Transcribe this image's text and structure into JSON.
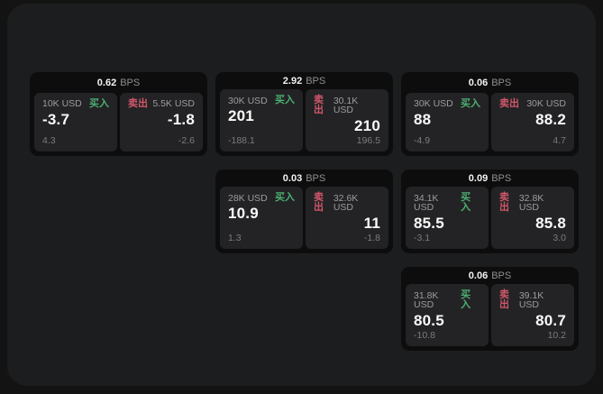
{
  "labels": {
    "bps_unit": "BPS",
    "buy": "买入",
    "sell": "卖出"
  },
  "colors": {
    "buy_color": "#4caf72",
    "sell_color": "#d0576a",
    "window_bg": "#1c1d1e",
    "card_bg": "#0d0d0e",
    "panel_bg": "#232325"
  },
  "cards": [
    {
      "bps": "0.62",
      "buy": {
        "amount": "10K USD",
        "price": "-3.7",
        "delta": "4.3"
      },
      "sell": {
        "amount": "5.5K USD",
        "price": "-1.8",
        "delta": "-2.6"
      }
    },
    {
      "bps": "2.92",
      "buy": {
        "amount": "30K USD",
        "price": "201",
        "delta": "-188.1"
      },
      "sell": {
        "amount": "30.1K USD",
        "price": "210",
        "delta": "196.5"
      }
    },
    {
      "bps": "0.06",
      "buy": {
        "amount": "30K USD",
        "price": "88",
        "delta": "-4.9"
      },
      "sell": {
        "amount": "30K USD",
        "price": "88.2",
        "delta": "4.7"
      }
    },
    {
      "bps": "0.03",
      "buy": {
        "amount": "28K USD",
        "price": "10.9",
        "delta": "1.3"
      },
      "sell": {
        "amount": "32.6K USD",
        "price": "11",
        "delta": "-1.8"
      }
    },
    {
      "bps": "0.09",
      "buy": {
        "amount": "34.1K USD",
        "price": "85.5",
        "delta": "-3.1"
      },
      "sell": {
        "amount": "32.8K USD",
        "price": "85.8",
        "delta": "3.0"
      }
    },
    {
      "bps": "0.06",
      "buy": {
        "amount": "31.8K USD",
        "price": "80.5",
        "delta": "-10.8"
      },
      "sell": {
        "amount": "39.1K USD",
        "price": "80.7",
        "delta": "10.2"
      }
    }
  ]
}
